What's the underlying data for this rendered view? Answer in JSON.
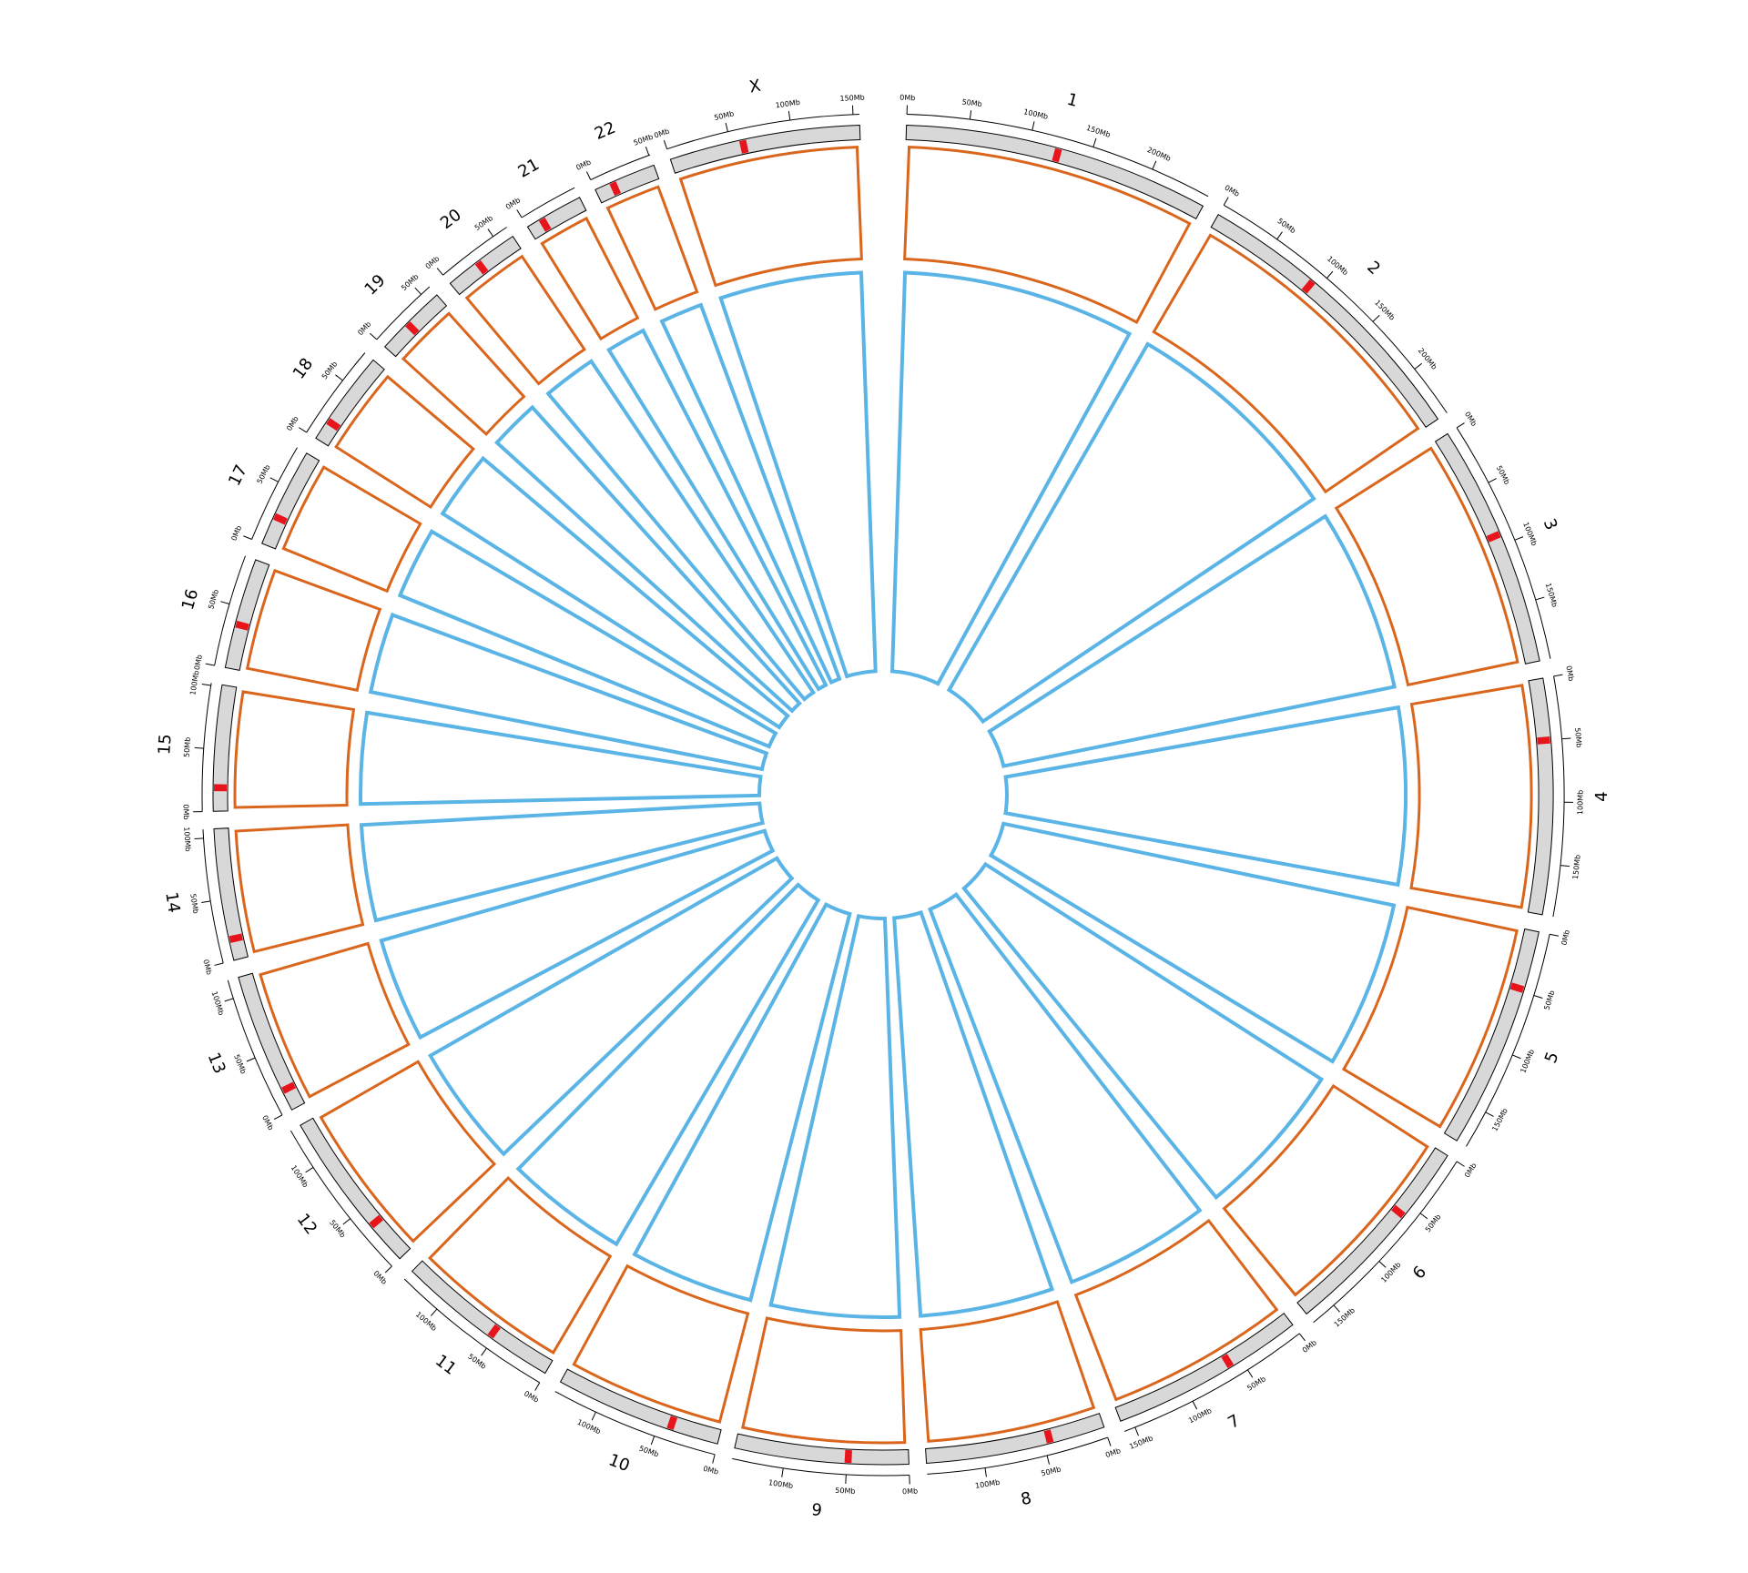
{
  "chart_data": {
    "type": "circos",
    "orange_color": "#d9661c",
    "blue_color": "#5ab4e5",
    "chromosomes": [
      {
        "name": "1",
        "length": 249,
        "centromere": 124,
        "ticks": [
          {
            "value": 0,
            "label": "0Mb"
          },
          {
            "value": 50,
            "label": "50Mb"
          },
          {
            "value": 100,
            "label": "100Mb"
          },
          {
            "value": 150,
            "label": "150Mb"
          },
          {
            "value": 200,
            "label": "200Mb"
          }
        ]
      },
      {
        "name": "2",
        "length": 243,
        "centromere": 93,
        "ticks": [
          {
            "value": 0,
            "label": "0Mb"
          },
          {
            "value": 50,
            "label": "50Mb"
          },
          {
            "value": 100,
            "label": "100Mb"
          },
          {
            "value": 150,
            "label": "150Mb"
          },
          {
            "value": 200,
            "label": "200Mb"
          }
        ]
      },
      {
        "name": "3",
        "length": 198,
        "centromere": 91,
        "ticks": [
          {
            "value": 0,
            "label": "0Mb"
          },
          {
            "value": 50,
            "label": "50Mb"
          },
          {
            "value": 100,
            "label": "100Mb"
          },
          {
            "value": 150,
            "label": "150Mb"
          }
        ]
      },
      {
        "name": "4",
        "length": 191,
        "centromere": 50,
        "ticks": [
          {
            "value": 0,
            "label": "0Mb"
          },
          {
            "value": 50,
            "label": "50Mb"
          },
          {
            "value": 100,
            "label": "100Mb"
          },
          {
            "value": 150,
            "label": "150Mb"
          }
        ]
      },
      {
        "name": "5",
        "length": 181,
        "centromere": 48,
        "ticks": [
          {
            "value": 0,
            "label": "0Mb"
          },
          {
            "value": 50,
            "label": "50Mb"
          },
          {
            "value": 100,
            "label": "100Mb"
          },
          {
            "value": 150,
            "label": "150Mb"
          }
        ]
      },
      {
        "name": "6",
        "length": 171,
        "centromere": 60,
        "ticks": [
          {
            "value": 0,
            "label": "0Mb"
          },
          {
            "value": 50,
            "label": "50Mb"
          },
          {
            "value": 100,
            "label": "100Mb"
          },
          {
            "value": 150,
            "label": "150Mb"
          }
        ]
      },
      {
        "name": "7",
        "length": 159,
        "centromere": 60,
        "ticks": [
          {
            "value": 0,
            "label": "0Mb"
          },
          {
            "value": 50,
            "label": "50Mb"
          },
          {
            "value": 100,
            "label": "100Mb"
          },
          {
            "value": 150,
            "label": "150Mb"
          }
        ]
      },
      {
        "name": "8",
        "length": 146,
        "centromere": 45,
        "ticks": [
          {
            "value": 0,
            "label": "0Mb"
          },
          {
            "value": 50,
            "label": "50Mb"
          },
          {
            "value": 100,
            "label": "100Mb"
          }
        ]
      },
      {
        "name": "9",
        "length": 141,
        "centromere": 49,
        "ticks": [
          {
            "value": 0,
            "label": "0Mb"
          },
          {
            "value": 50,
            "label": "50Mb"
          },
          {
            "value": 100,
            "label": "100Mb"
          }
        ]
      },
      {
        "name": "10",
        "length": 136,
        "centromere": 40,
        "ticks": [
          {
            "value": 0,
            "label": "0Mb"
          },
          {
            "value": 50,
            "label": "50Mb"
          },
          {
            "value": 100,
            "label": "100Mb"
          }
        ]
      },
      {
        "name": "11",
        "length": 135,
        "centromere": 53,
        "ticks": [
          {
            "value": 0,
            "label": "0Mb"
          },
          {
            "value": 50,
            "label": "50Mb"
          },
          {
            "value": 100,
            "label": "100Mb"
          }
        ]
      },
      {
        "name": "12",
        "length": 134,
        "centromere": 35,
        "ticks": [
          {
            "value": 0,
            "label": "0Mb"
          },
          {
            "value": 50,
            "label": "50Mb"
          },
          {
            "value": 100,
            "label": "100Mb"
          }
        ]
      },
      {
        "name": "13",
        "length": 115,
        "centromere": 17,
        "ticks": [
          {
            "value": 0,
            "label": "0Mb"
          },
          {
            "value": 50,
            "label": "50Mb"
          },
          {
            "value": 100,
            "label": "100Mb"
          }
        ]
      },
      {
        "name": "14",
        "length": 107,
        "centromere": 17,
        "ticks": [
          {
            "value": 0,
            "label": "0Mb"
          },
          {
            "value": 50,
            "label": "50Mb"
          },
          {
            "value": 100,
            "label": "100Mb"
          }
        ]
      },
      {
        "name": "15",
        "length": 102,
        "centromere": 19,
        "ticks": [
          {
            "value": 0,
            "label": "0Mb"
          },
          {
            "value": 50,
            "label": "50Mb"
          },
          {
            "value": 100,
            "label": "100Mb"
          }
        ]
      },
      {
        "name": "16",
        "length": 90,
        "centromere": 36,
        "ticks": [
          {
            "value": 0,
            "label": "0Mb"
          },
          {
            "value": 50,
            "label": "50Mb"
          }
        ]
      },
      {
        "name": "17",
        "length": 81,
        "centromere": 24,
        "ticks": [
          {
            "value": 0,
            "label": "0Mb"
          },
          {
            "value": 50,
            "label": "50Mb"
          }
        ]
      },
      {
        "name": "18",
        "length": 78,
        "centromere": 17,
        "ticks": [
          {
            "value": 0,
            "label": "0Mb"
          },
          {
            "value": 50,
            "label": "50Mb"
          }
        ]
      },
      {
        "name": "19",
        "length": 59,
        "centromere": 26,
        "ticks": [
          {
            "value": 0,
            "label": "0Mb"
          },
          {
            "value": 50,
            "label": "50Mb"
          }
        ]
      },
      {
        "name": "20",
        "length": 63,
        "centromere": 28,
        "ticks": [
          {
            "value": 0,
            "label": "0Mb"
          },
          {
            "value": 50,
            "label": "50Mb"
          }
        ]
      },
      {
        "name": "21",
        "length": 48,
        "centromere": 13,
        "ticks": [
          {
            "value": 0,
            "label": "0Mb"
          }
        ]
      },
      {
        "name": "22",
        "length": 51,
        "centromere": 15,
        "ticks": [
          {
            "value": 0,
            "label": "0Mb"
          },
          {
            "value": 50,
            "label": "50Mb"
          }
        ]
      },
      {
        "name": "X",
        "length": 155,
        "centromere": 60,
        "ticks": [
          {
            "value": 0,
            "label": "0Mb"
          },
          {
            "value": 50,
            "label": "50Mb"
          },
          {
            "value": 100,
            "label": "100Mb"
          },
          {
            "value": 150,
            "label": "150Mb"
          }
        ]
      }
    ]
  }
}
